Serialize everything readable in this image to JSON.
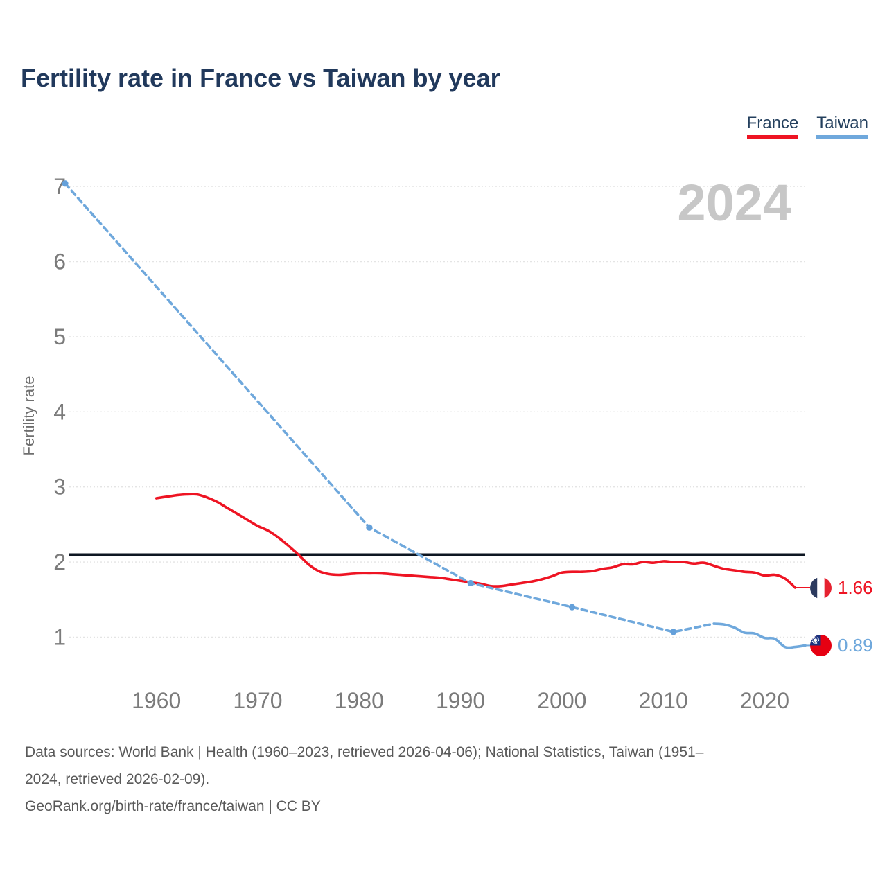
{
  "page": {
    "title": "Fertility rate in France vs Taiwan by year",
    "watermark_year": "2024"
  },
  "legend": {
    "items": [
      {
        "label": "France",
        "color": "#ee1423"
      },
      {
        "label": "Taiwan",
        "color": "#6fa8dc"
      }
    ]
  },
  "chart_data": {
    "type": "line",
    "title": "Fertility rate in France vs Taiwan by year",
    "xlabel": "",
    "ylabel": "Fertility rate",
    "xlim": [
      1951,
      2024
    ],
    "ylim": [
      0.6,
      7.3
    ],
    "x_ticks": [
      1960,
      1970,
      1980,
      1990,
      2000,
      2010,
      2020
    ],
    "y_ticks": [
      1,
      2,
      3,
      4,
      5,
      6,
      7
    ],
    "grid": "horizontal-dotted",
    "legend_position": "top-right",
    "reference_line": {
      "value": 2.1,
      "color": "#0d1622"
    },
    "series": [
      {
        "name": "France",
        "color": "#ee1423",
        "end_label": {
          "value": "1.66",
          "flag": "france-flag-icon"
        },
        "segments": [
          {
            "line_style": "solid",
            "points": [
              [
                1960,
                2.85
              ],
              [
                1961,
                2.87
              ],
              [
                1962,
                2.89
              ],
              [
                1963,
                2.9
              ],
              [
                1964,
                2.9
              ],
              [
                1965,
                2.86
              ],
              [
                1966,
                2.8
              ],
              [
                1967,
                2.72
              ],
              [
                1968,
                2.64
              ],
              [
                1969,
                2.56
              ],
              [
                1970,
                2.48
              ],
              [
                1971,
                2.42
              ],
              [
                1972,
                2.33
              ],
              [
                1973,
                2.22
              ],
              [
                1974,
                2.1
              ],
              [
                1975,
                1.97
              ],
              [
                1976,
                1.88
              ],
              [
                1977,
                1.84
              ],
              [
                1978,
                1.83
              ],
              [
                1979,
                1.84
              ],
              [
                1980,
                1.85
              ],
              [
                1981,
                1.85
              ],
              [
                1982,
                1.85
              ],
              [
                1983,
                1.84
              ],
              [
                1984,
                1.83
              ],
              [
                1985,
                1.82
              ],
              [
                1986,
                1.81
              ],
              [
                1987,
                1.8
              ],
              [
                1988,
                1.79
              ],
              [
                1989,
                1.77
              ],
              [
                1990,
                1.75
              ],
              [
                1991,
                1.73
              ],
              [
                1992,
                1.71
              ],
              [
                1993,
                1.68
              ],
              [
                1994,
                1.68
              ],
              [
                1995,
                1.7
              ],
              [
                1996,
                1.72
              ],
              [
                1997,
                1.74
              ],
              [
                1998,
                1.77
              ],
              [
                1999,
                1.81
              ],
              [
                2000,
                1.86
              ],
              [
                2001,
                1.87
              ],
              [
                2002,
                1.87
              ],
              [
                2003,
                1.88
              ],
              [
                2004,
                1.91
              ],
              [
                2005,
                1.93
              ],
              [
                2006,
                1.97
              ],
              [
                2007,
                1.97
              ],
              [
                2008,
                2.0
              ],
              [
                2009,
                1.99
              ],
              [
                2010,
                2.01
              ],
              [
                2011,
                2.0
              ],
              [
                2012,
                2.0
              ],
              [
                2013,
                1.98
              ],
              [
                2014,
                1.99
              ],
              [
                2015,
                1.95
              ],
              [
                2016,
                1.91
              ],
              [
                2017,
                1.89
              ],
              [
                2018,
                1.87
              ],
              [
                2019,
                1.86
              ],
              [
                2020,
                1.82
              ],
              [
                2021,
                1.83
              ],
              [
                2022,
                1.78
              ],
              [
                2023,
                1.66
              ]
            ]
          }
        ]
      },
      {
        "name": "Taiwan",
        "color": "#6fa8dc",
        "marker_color": "#64a0da",
        "end_label": {
          "value": "0.89",
          "flag": "taiwan-flag-icon"
        },
        "marker_points": [
          [
            1951,
            7.04
          ],
          [
            1981,
            2.46
          ],
          [
            1991,
            1.72
          ],
          [
            2001,
            1.4
          ],
          [
            2011,
            1.07
          ]
        ],
        "segments": [
          {
            "line_style": "dashed",
            "points": [
              [
                1951,
                7.04
              ],
              [
                1981,
                2.46
              ],
              [
                1991,
                1.72
              ],
              [
                2001,
                1.4
              ],
              [
                2011,
                1.07
              ],
              [
                2015,
                1.18
              ]
            ]
          },
          {
            "line_style": "solid",
            "points": [
              [
                2015,
                1.18
              ],
              [
                2016,
                1.17
              ],
              [
                2017,
                1.13
              ],
              [
                2018,
                1.06
              ],
              [
                2019,
                1.05
              ],
              [
                2020,
                0.99
              ],
              [
                2021,
                0.98
              ],
              [
                2022,
                0.87
              ],
              [
                2023,
                0.87
              ],
              [
                2024,
                0.89
              ]
            ]
          }
        ]
      }
    ]
  },
  "footer": {
    "lines": [
      "Data sources: World Bank | Health (1960–2023, retrieved 2026-04-06); National Statistics, Taiwan (1951–",
      "2024, retrieved 2026-02-09).",
      "GeoRank.org/birth-rate/france/taiwan | CC BY"
    ]
  }
}
